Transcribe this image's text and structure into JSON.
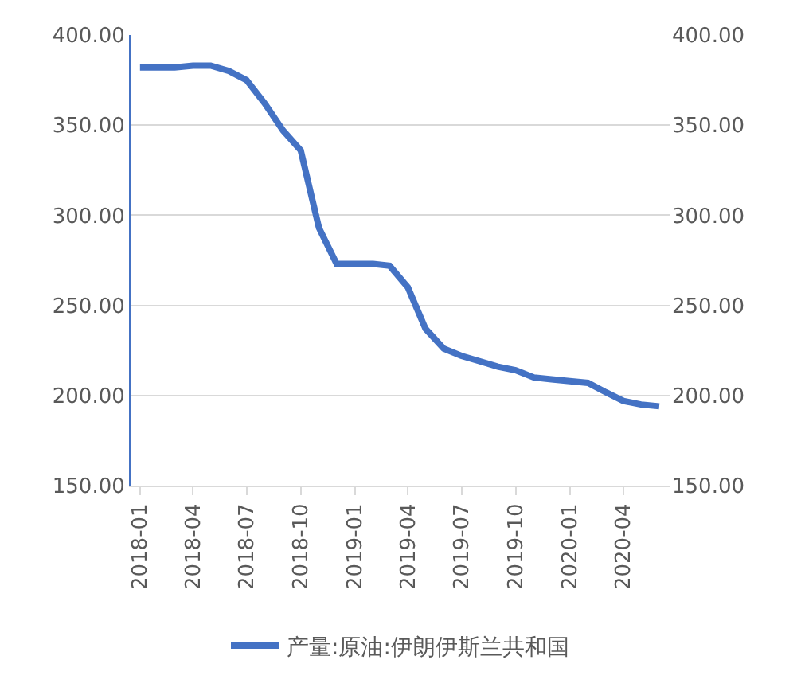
{
  "chart_data": {
    "type": "line",
    "x": [
      "2018-01",
      "2018-02",
      "2018-03",
      "2018-04",
      "2018-05",
      "2018-06",
      "2018-07",
      "2018-08",
      "2018-09",
      "2018-10",
      "2018-11",
      "2018-12",
      "2019-01",
      "2019-02",
      "2019-03",
      "2019-04",
      "2019-05",
      "2019-06",
      "2019-07",
      "2019-08",
      "2019-09",
      "2019-10",
      "2019-11",
      "2019-12",
      "2020-01",
      "2020-02",
      "2020-03",
      "2020-04",
      "2020-05",
      "2020-06"
    ],
    "series": [
      {
        "name": "产量:原油:伊朗伊斯兰共和国",
        "color": "#4472c4",
        "values": [
          382,
          382,
          382,
          383,
          383,
          380,
          375,
          362,
          347,
          336,
          293,
          273,
          273,
          273,
          272,
          260,
          237,
          226,
          222,
          219,
          216,
          214,
          210,
          209,
          208,
          207,
          202,
          197,
          195,
          194
        ]
      }
    ],
    "xlim": [
      "2017-12-16",
      "2020-06-20"
    ],
    "xticks": [
      "2018-01",
      "2018-04",
      "2018-07",
      "2018-10",
      "2019-01",
      "2019-04",
      "2019-07",
      "2019-10",
      "2020-01",
      "2020-04"
    ],
    "ylim": [
      150,
      400
    ],
    "yticks": [
      {
        "value": 150,
        "label": "150.00"
      },
      {
        "value": 200,
        "label": "200.00"
      },
      {
        "value": 250,
        "label": "250.00"
      },
      {
        "value": 300,
        "label": "300.00"
      },
      {
        "value": 350,
        "label": "350.00"
      },
      {
        "value": 400,
        "label": "400.00"
      }
    ],
    "y2lim": [
      150,
      400
    ],
    "y2ticks": [
      {
        "value": 150,
        "label": "150.00"
      },
      {
        "value": 200,
        "label": "200.00"
      },
      {
        "value": 250,
        "label": "250.00"
      },
      {
        "value": 300,
        "label": "300.00"
      },
      {
        "value": 350,
        "label": "350.00"
      },
      {
        "value": 400,
        "label": "400.00"
      }
    ],
    "grid": "y",
    "legend": "bottom",
    "marker": "none",
    "line_style": "solid"
  }
}
